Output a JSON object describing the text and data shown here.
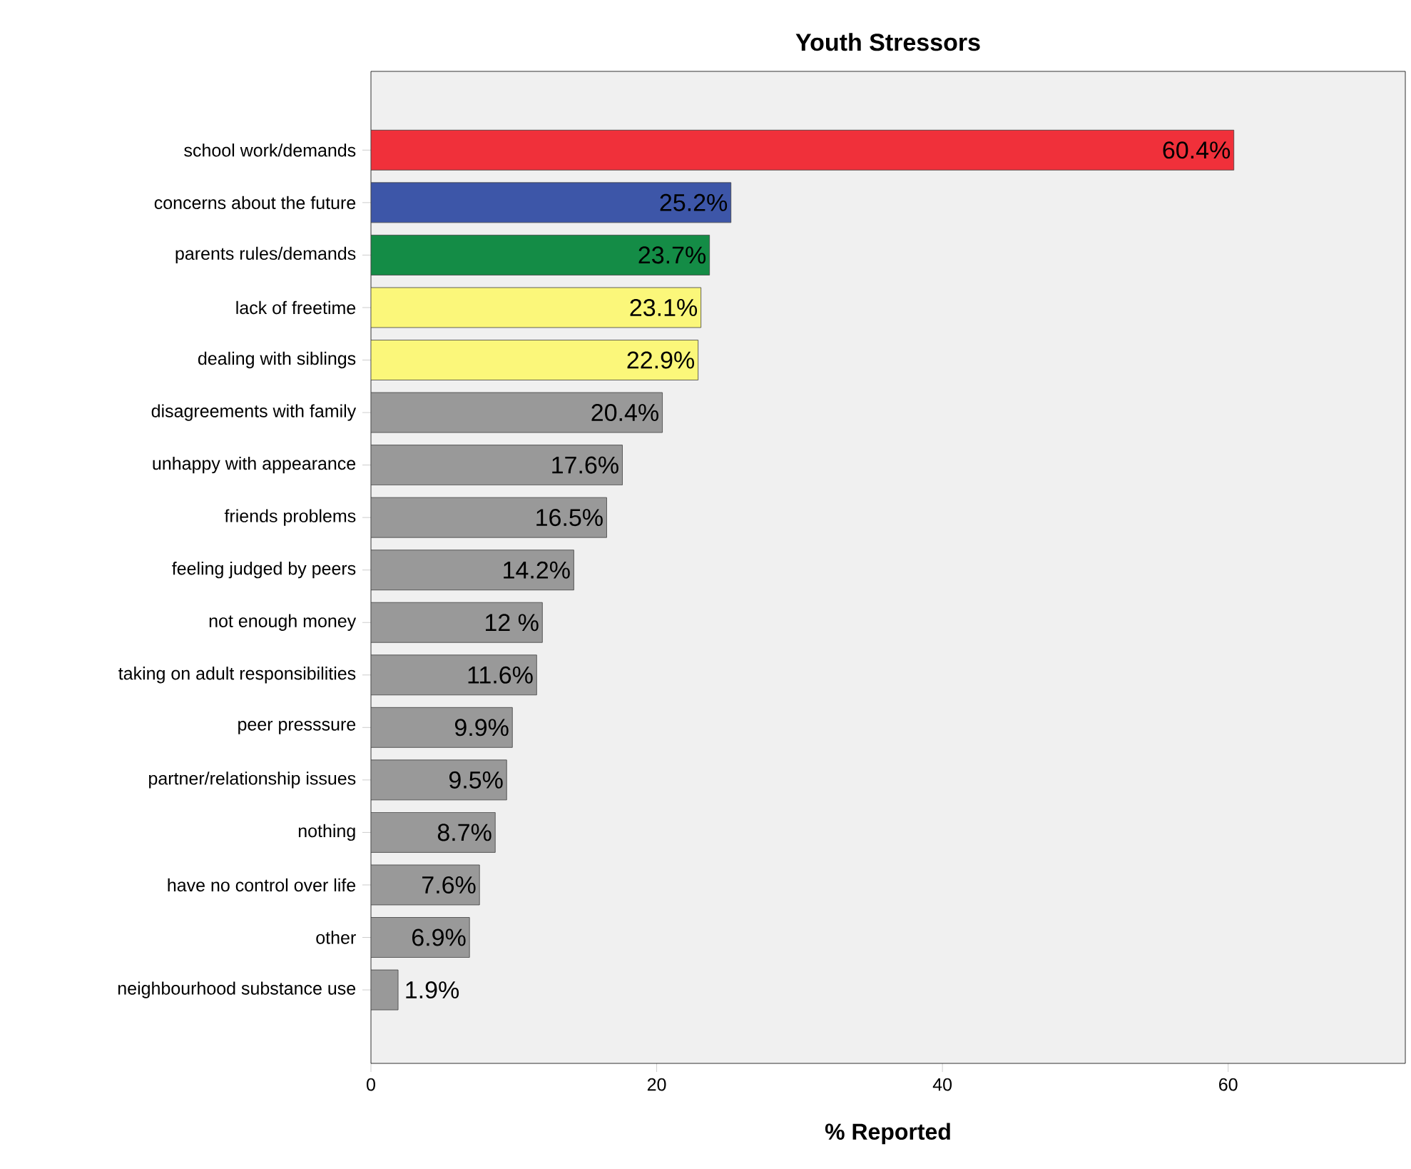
{
  "chart_data": {
    "type": "bar",
    "orientation": "horizontal",
    "title": "Youth Stressors",
    "xlabel": "% Reported",
    "categories": [
      "school work/demands",
      "concerns about the future",
      "parents rules/demands",
      "lack of freetime",
      "dealing with siblings",
      "disagreements with family",
      "unhappy with appearance",
      "friends problems",
      "feeling judged by peers",
      "not enough money",
      "taking on adult responsibilities",
      "peer presssure",
      "partner/relationship issues",
      "nothing",
      "have no control over life",
      "other",
      "neighbourhood substance use"
    ],
    "values": [
      60.4,
      25.2,
      23.7,
      23.1,
      22.9,
      20.4,
      17.6,
      16.5,
      14.2,
      12,
      11.6,
      9.9,
      9.5,
      8.7,
      7.6,
      6.9,
      1.9
    ],
    "value_labels": [
      "60.4%",
      "25.2%",
      "23.7%",
      "23.1%",
      "22.9%",
      "20.4%",
      "17.6%",
      "16.5%",
      "14.2%",
      "12 %",
      "11.6%",
      "9.9%",
      "9.5%",
      "8.7%",
      "7.6%",
      "6.9%",
      "1.9%"
    ],
    "colors": [
      "#f0303a",
      "#3d56a8",
      "#148c46",
      "#fbf77a",
      "#fbf77a",
      "#999999",
      "#999999",
      "#999999",
      "#999999",
      "#999999",
      "#999999",
      "#999999",
      "#999999",
      "#999999",
      "#999999",
      "#999999",
      "#999999"
    ],
    "xlim": [
      0,
      72.4
    ],
    "xticks": [
      0,
      20,
      40,
      60
    ],
    "grid": false
  }
}
